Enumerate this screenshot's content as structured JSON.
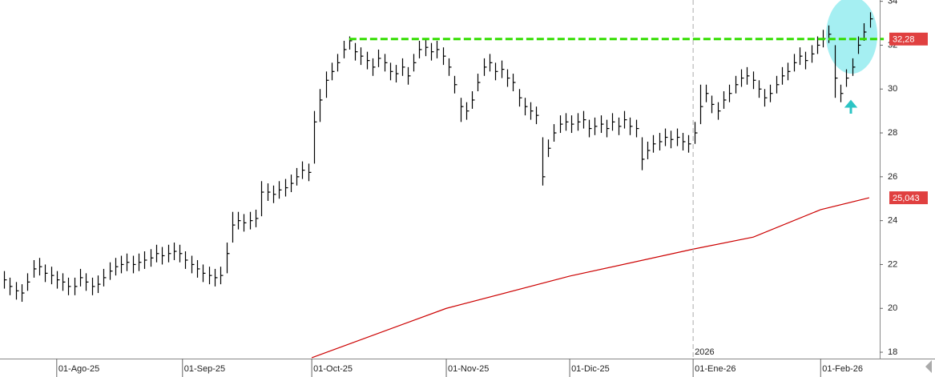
{
  "chart_data": {
    "type": "ohlc",
    "xlim": [
      -0.7,
      149.7
    ],
    "ylim": [
      17.71,
      34.06
    ],
    "yticks": [
      18,
      20,
      22,
      24,
      26,
      28,
      30,
      32,
      34
    ],
    "xticks": [
      {
        "value": 9,
        "label": "01-Ago-25"
      },
      {
        "value": 30.5,
        "label": "01-Sep-25"
      },
      {
        "value": 52.6,
        "label": "01-Oct-25"
      },
      {
        "value": 75.6,
        "label": "01-Nov-25"
      },
      {
        "value": 96.7,
        "label": "01-Dic-25"
      },
      {
        "value": 117.8,
        "label": "01-Ene-26"
      },
      {
        "value": 139.6,
        "label": "01-Feb-26"
      }
    ],
    "bars": {
      "color": "#000000",
      "high": [
        21.7,
        21.4,
        21.2,
        21.1,
        21.6,
        22.2,
        22.3,
        22.0,
        21.9,
        21.7,
        21.6,
        21.4,
        21.4,
        21.8,
        21.6,
        21.4,
        21.5,
        21.8,
        22.1,
        22.3,
        22.4,
        22.5,
        22.4,
        22.5,
        22.6,
        22.7,
        22.9,
        22.8,
        22.9,
        23.0,
        22.9,
        22.6,
        22.4,
        22.2,
        22.0,
        21.9,
        21.8,
        21.9,
        23.0,
        24.4,
        24.4,
        24.3,
        24.4,
        24.5,
        25.8,
        25.7,
        25.6,
        25.8,
        25.9,
        26.1,
        26.4,
        26.7,
        26.6,
        29.0,
        30.0,
        30.8,
        31.2,
        31.6,
        32.2,
        32.4,
        32.1,
        31.9,
        31.7,
        31.4,
        31.8,
        31.6,
        31.2,
        31.1,
        31.4,
        31.0,
        31.6,
        32.2,
        32.3,
        32.1,
        32.2,
        31.9,
        31.4,
        30.6,
        29.6,
        29.4,
        29.9,
        30.7,
        31.4,
        31.6,
        31.2,
        31.3,
        30.9,
        30.7,
        30.0,
        29.6,
        29.4,
        29.2,
        27.8,
        27.7,
        28.4,
        28.8,
        28.9,
        28.8,
        28.9,
        29.0,
        28.6,
        28.7,
        28.8,
        28.6,
        28.9,
        28.7,
        29.0,
        28.7,
        28.6,
        27.8,
        27.6,
        27.9,
        28.0,
        28.2,
        28.1,
        28.2,
        28.0,
        27.9,
        28.5,
        30.2,
        30.2,
        29.7,
        29.4,
        29.9,
        30.2,
        30.6,
        30.9,
        31.0,
        30.8,
        30.4,
        30.0,
        30.2,
        30.6,
        31.0,
        31.2,
        31.6,
        31.9,
        31.7,
        32.0,
        32.4,
        32.7,
        32.9,
        32.0,
        30.2,
        30.9,
        31.4,
        32.4,
        33.0,
        33.5
      ],
      "low": [
        20.9,
        20.6,
        20.4,
        20.3,
        20.8,
        21.4,
        21.5,
        21.2,
        21.1,
        20.9,
        20.8,
        20.6,
        20.6,
        21.0,
        20.8,
        20.6,
        20.7,
        21.0,
        21.3,
        21.5,
        21.6,
        21.7,
        21.6,
        21.7,
        21.8,
        21.9,
        22.1,
        22.0,
        22.1,
        22.2,
        22.1,
        21.8,
        21.6,
        21.4,
        21.2,
        21.1,
        21.0,
        21.1,
        21.6,
        23.0,
        23.6,
        23.5,
        23.6,
        23.7,
        24.2,
        24.9,
        24.8,
        25.0,
        25.1,
        25.3,
        25.6,
        25.9,
        25.8,
        26.6,
        28.5,
        29.6,
        30.4,
        30.8,
        31.4,
        31.8,
        31.3,
        31.1,
        30.9,
        30.6,
        31.0,
        30.8,
        30.4,
        30.3,
        30.6,
        30.2,
        30.8,
        31.4,
        31.5,
        31.3,
        31.4,
        31.1,
        30.6,
        29.8,
        28.5,
        28.6,
        29.1,
        29.9,
        30.6,
        30.8,
        30.4,
        30.5,
        30.1,
        29.9,
        29.2,
        28.8,
        28.6,
        28.4,
        25.6,
        26.9,
        27.6,
        28.0,
        28.1,
        28.0,
        28.1,
        28.2,
        27.8,
        27.9,
        28.0,
        27.8,
        28.1,
        27.9,
        28.2,
        27.9,
        27.8,
        26.3,
        26.8,
        27.1,
        27.2,
        27.4,
        27.3,
        27.4,
        27.2,
        27.1,
        27.5,
        28.4,
        29.4,
        28.9,
        28.6,
        29.1,
        29.4,
        29.8,
        30.1,
        30.2,
        30.0,
        29.6,
        29.2,
        29.4,
        29.8,
        30.2,
        30.4,
        30.8,
        31.1,
        30.9,
        31.2,
        31.6,
        31.9,
        32.1,
        29.6,
        29.4,
        30.1,
        30.6,
        31.6,
        32.2,
        32.8
      ],
      "close": [
        21.3,
        21.0,
        20.8,
        20.7,
        21.2,
        21.8,
        21.9,
        21.6,
        21.5,
        21.3,
        21.2,
        21.0,
        21.0,
        21.4,
        21.2,
        21.0,
        21.1,
        21.4,
        21.7,
        21.9,
        22.0,
        22.1,
        22.0,
        22.1,
        22.2,
        22.3,
        22.5,
        22.4,
        22.5,
        22.6,
        22.5,
        22.2,
        22.0,
        21.8,
        21.6,
        21.5,
        21.4,
        21.5,
        22.5,
        23.8,
        24.0,
        23.9,
        24.0,
        24.1,
        25.3,
        25.3,
        25.2,
        25.4,
        25.5,
        25.7,
        26.0,
        26.3,
        26.2,
        28.5,
        29.5,
        30.4,
        30.8,
        31.2,
        31.8,
        32.2,
        31.7,
        31.5,
        31.3,
        31.0,
        31.4,
        31.2,
        30.8,
        30.7,
        31.0,
        30.6,
        31.2,
        31.8,
        31.9,
        31.7,
        31.8,
        31.5,
        31.0,
        30.2,
        29.2,
        29.0,
        29.5,
        30.3,
        31.0,
        31.2,
        30.8,
        30.9,
        30.5,
        30.3,
        29.6,
        29.2,
        29.0,
        28.8,
        26.0,
        27.3,
        28.0,
        28.4,
        28.5,
        28.4,
        28.5,
        28.6,
        28.2,
        28.3,
        28.4,
        28.2,
        28.5,
        28.3,
        28.6,
        28.3,
        28.2,
        26.8,
        27.2,
        27.5,
        27.6,
        27.8,
        27.7,
        27.8,
        27.6,
        27.5,
        28.0,
        29.2,
        29.8,
        29.3,
        29.0,
        29.5,
        29.8,
        30.2,
        30.5,
        30.6,
        30.4,
        30.0,
        29.6,
        29.8,
        30.2,
        30.6,
        30.8,
        31.2,
        31.5,
        31.3,
        31.6,
        32.0,
        32.3,
        32.5,
        30.5,
        29.8,
        30.5,
        31.0,
        32.0,
        32.6,
        33.2
      ]
    },
    "moving_average": {
      "color": "#cc0000",
      "x": [
        52.6,
        75.6,
        96.7,
        117.8,
        128.1,
        139.6,
        147.9
      ],
      "values": [
        17.75,
        20.0,
        21.47,
        22.7,
        23.25,
        24.5,
        25.043
      ],
      "end_label": "25,043"
    },
    "resistance": {
      "color": "#33dd00",
      "value": 32.28,
      "label": "32,28",
      "x_start": 59,
      "x_end": 150.4
    },
    "separator": {
      "x": 117.8,
      "label": "2026"
    }
  }
}
